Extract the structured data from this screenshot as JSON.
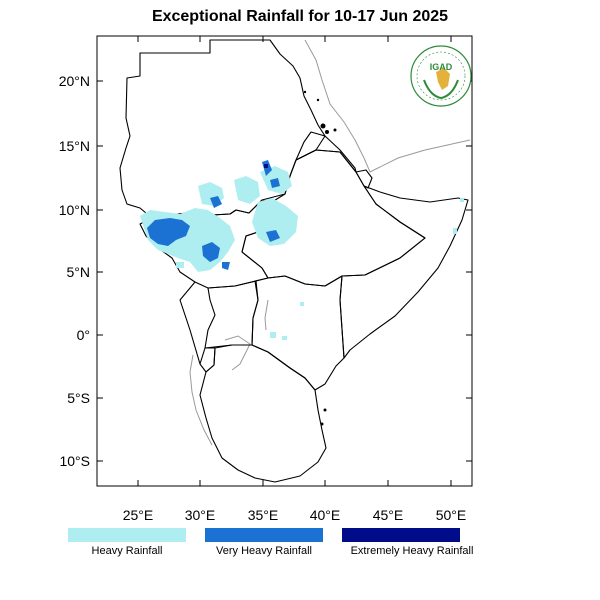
{
  "map": {
    "title": "Exceptional Rainfall for 10-17 Jun 2025",
    "lat_labels": [
      "20°N",
      "15°N",
      "10°N",
      "5°N",
      "0°",
      "5°S",
      "10°S"
    ],
    "lon_labels": [
      "25°E",
      "30°E",
      "35°E",
      "40°E",
      "45°E",
      "50°E"
    ],
    "logo_text": "IGAD"
  },
  "legend": {
    "items": [
      {
        "label": "Heavy Rainfall",
        "color": "#aeeef0"
      },
      {
        "label": "Very Heavy Rainfall",
        "color": "#1b72d2"
      },
      {
        "label": "Extremely Heavy Rainfall",
        "color": "#000c8a"
      }
    ]
  },
  "colors": {
    "heavy": "#aeeef0",
    "very_heavy": "#1b72d2",
    "extreme": "#000c8a",
    "logo_green": "#2e8b3a"
  }
}
